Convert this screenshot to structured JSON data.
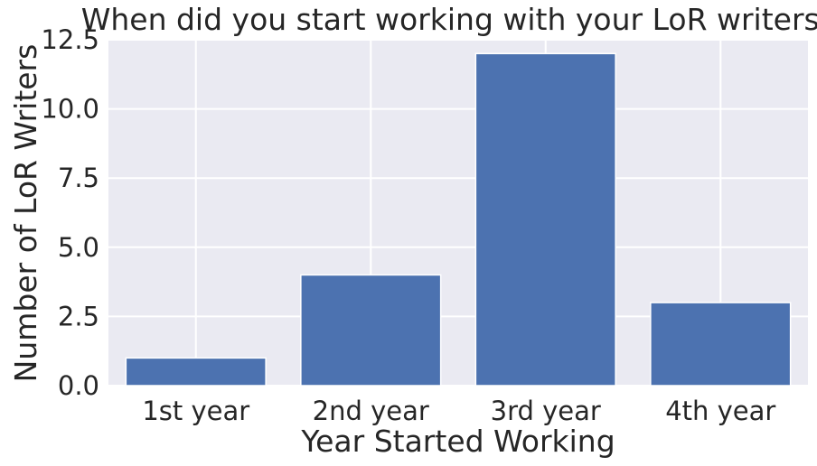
{
  "chart_data": {
    "type": "bar",
    "title": "When did you start working with your LoR writers?",
    "xlabel": "Year Started Working",
    "ylabel": "Number of LoR Writers",
    "categories": [
      "1st year",
      "2nd year",
      "3rd year",
      "4th year"
    ],
    "values": [
      1,
      4,
      12,
      3
    ],
    "ylim": [
      0,
      12.5
    ],
    "yticks": [
      "0.0",
      "2.5",
      "5.0",
      "7.5",
      "10.0",
      "12.5"
    ],
    "bar_color": "#4c72b0",
    "plot_background": "#eaeaf2",
    "grid": true,
    "legend": "none"
  }
}
